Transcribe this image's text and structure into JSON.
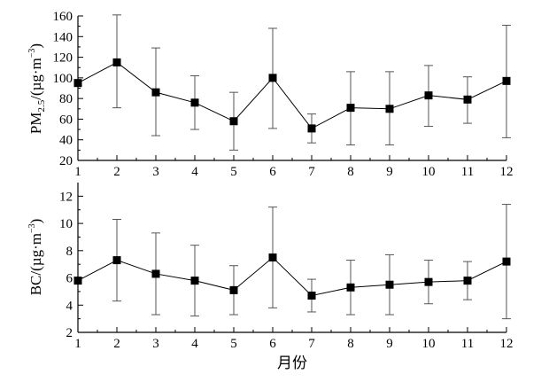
{
  "chart_data": [
    {
      "type": "line",
      "ylabel": "PM2.5/(µg·m-3)",
      "ylabel_parts": {
        "base": "PM",
        "subscript": "2.5",
        "unit": "/(µg·m",
        "superscript": "−3",
        "close": ")"
      },
      "xlim": [
        1,
        12
      ],
      "ylim": [
        20,
        160
      ],
      "yticks": [
        20,
        40,
        60,
        80,
        100,
        120,
        140,
        160
      ],
      "xticks": [
        1,
        2,
        3,
        4,
        5,
        6,
        7,
        8,
        9,
        10,
        11,
        12
      ],
      "series": [
        {
          "x": [
            1,
            2,
            3,
            4,
            5,
            6,
            7,
            8,
            9,
            10,
            11,
            12
          ],
          "values": [
            95,
            115,
            86,
            76,
            58,
            100,
            51,
            71,
            70,
            83,
            79,
            97
          ],
          "err_low": [
            null,
            71,
            44,
            50,
            30,
            51,
            37,
            35,
            35,
            53,
            56,
            42
          ],
          "err_high": [
            null,
            161,
            129,
            102,
            86,
            148,
            65,
            106,
            106,
            112,
            101,
            151
          ]
        }
      ],
      "grid": false,
      "x_tick_labels_shown": true
    },
    {
      "type": "line",
      "ylabel": "BC/(µg·m-3)",
      "ylabel_parts": {
        "base": "BC",
        "subscript": "",
        "unit": "/(µg·m",
        "superscript": "−3",
        "close": ")"
      },
      "xlabel": "月份",
      "xlim": [
        1,
        12
      ],
      "ylim": [
        2,
        13
      ],
      "yticks": [
        2,
        4,
        6,
        8,
        10,
        12
      ],
      "xticks": [
        1,
        2,
        3,
        4,
        5,
        6,
        7,
        8,
        9,
        10,
        11,
        12
      ],
      "series": [
        {
          "x": [
            1,
            2,
            3,
            4,
            5,
            6,
            7,
            8,
            9,
            10,
            11,
            12
          ],
          "values": [
            5.8,
            7.3,
            6.3,
            5.8,
            5.1,
            7.5,
            4.7,
            5.3,
            5.5,
            5.7,
            5.8,
            7.2
          ],
          "err_low": [
            null,
            4.3,
            3.3,
            3.2,
            3.3,
            3.8,
            3.5,
            3.3,
            3.3,
            4.1,
            4.4,
            3.0
          ],
          "err_high": [
            null,
            10.3,
            9.3,
            8.4,
            6.9,
            11.2,
            5.9,
            7.3,
            7.7,
            7.3,
            7.2,
            11.4
          ]
        }
      ],
      "grid": false,
      "x_tick_labels_shown": true
    }
  ]
}
